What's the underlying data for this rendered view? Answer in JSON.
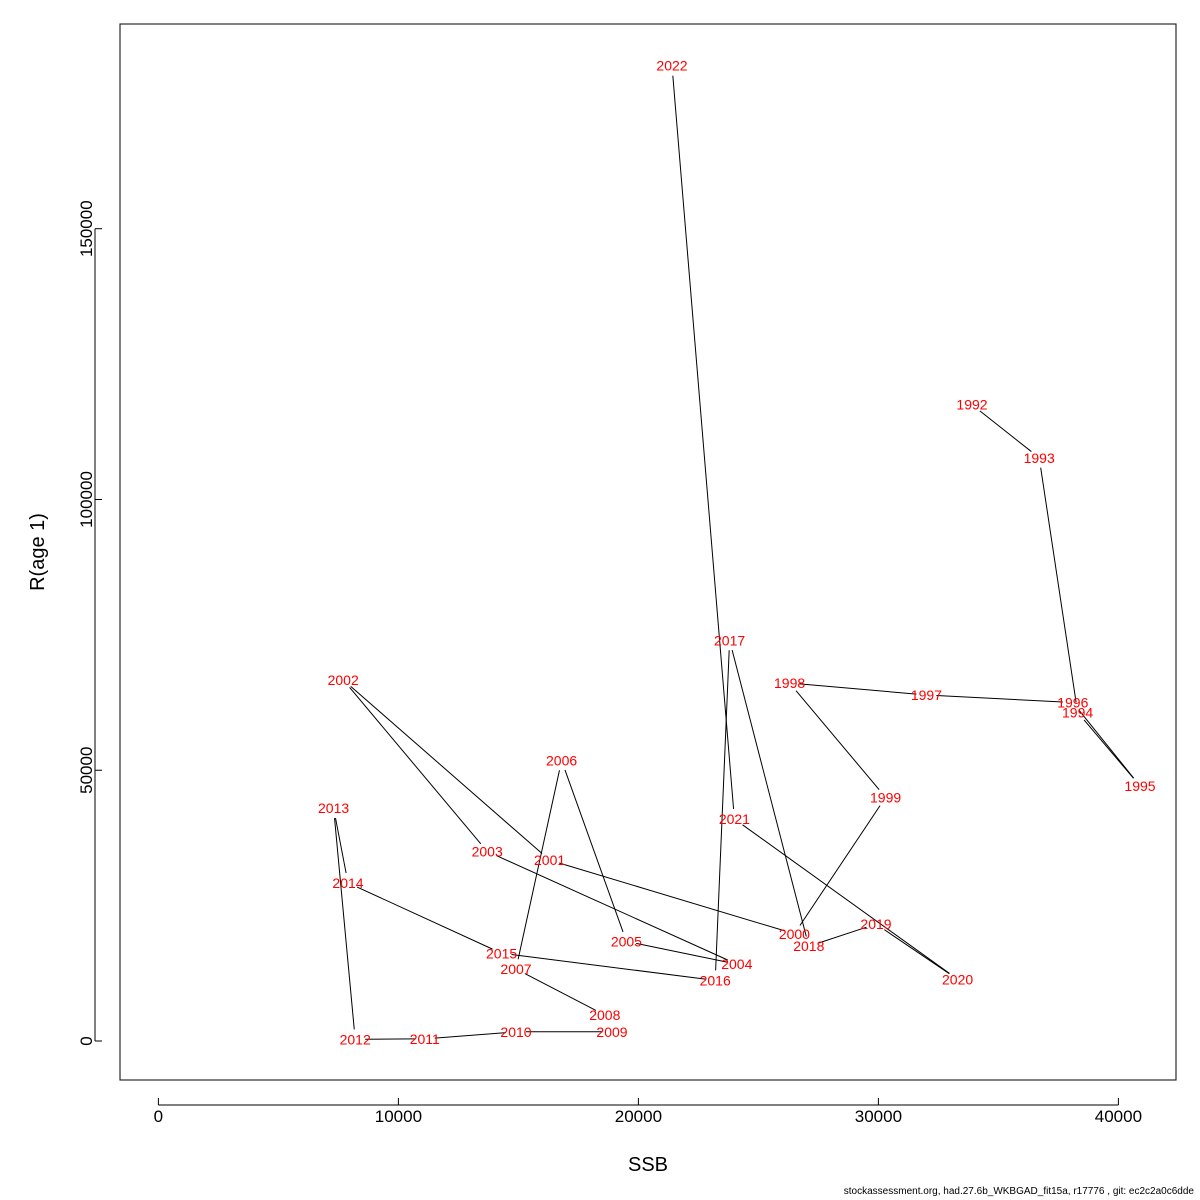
{
  "chart_data": {
    "type": "line",
    "xlabel": "SSB",
    "ylabel": "R(age 1)",
    "xlim": [
      -1600,
      42400
    ],
    "ylim": [
      -7200,
      187800
    ],
    "x_ticks": [
      0,
      10000,
      20000,
      30000,
      40000
    ],
    "y_ticks": [
      0,
      50000,
      100000,
      150000
    ],
    "grid": false,
    "line_color": "#000000",
    "label_color": "#ff0000",
    "points": [
      {
        "label": "1992",
        "x": 33900,
        "y": 117500
      },
      {
        "label": "1993",
        "x": 36700,
        "y": 107700
      },
      {
        "label": "1994",
        "x": 38300,
        "y": 60700
      },
      {
        "label": "1995",
        "x": 40900,
        "y": 47100
      },
      {
        "label": "1996",
        "x": 38100,
        "y": 62500
      },
      {
        "label": "1997",
        "x": 32000,
        "y": 63900
      },
      {
        "label": "1998",
        "x": 26300,
        "y": 66100
      },
      {
        "label": "1999",
        "x": 30300,
        "y": 45000
      },
      {
        "label": "2000",
        "x": 26500,
        "y": 19800
      },
      {
        "label": "2001",
        "x": 16300,
        "y": 33400
      },
      {
        "label": "2002",
        "x": 7700,
        "y": 66700
      },
      {
        "label": "2003",
        "x": 13700,
        "y": 35000
      },
      {
        "label": "2004",
        "x": 24100,
        "y": 14200
      },
      {
        "label": "2005",
        "x": 19500,
        "y": 18400
      },
      {
        "label": "2006",
        "x": 16800,
        "y": 51800
      },
      {
        "label": "2007",
        "x": 14900,
        "y": 13300
      },
      {
        "label": "2008",
        "x": 18600,
        "y": 4800
      },
      {
        "label": "2009",
        "x": 18900,
        "y": 1700
      },
      {
        "label": "2010",
        "x": 14900,
        "y": 1700
      },
      {
        "label": "2011",
        "x": 11100,
        "y": 400
      },
      {
        "label": "2012",
        "x": 8200,
        "y": 300
      },
      {
        "label": "2013",
        "x": 7300,
        "y": 43000
      },
      {
        "label": "2014",
        "x": 7900,
        "y": 29200
      },
      {
        "label": "2015",
        "x": 14300,
        "y": 16200
      },
      {
        "label": "2016",
        "x": 23200,
        "y": 11200
      },
      {
        "label": "2017",
        "x": 23800,
        "y": 74000
      },
      {
        "label": "2018",
        "x": 27100,
        "y": 17500
      },
      {
        "label": "2019",
        "x": 29900,
        "y": 21600
      },
      {
        "label": "2020",
        "x": 33300,
        "y": 11400
      },
      {
        "label": "2021",
        "x": 24000,
        "y": 41000
      },
      {
        "label": "2022",
        "x": 21400,
        "y": 180100
      }
    ]
  },
  "footer": "stockassessment.org, had.27.6b_WKBGAD_fit15a, r17776 , git: ec2c2a0c6dde"
}
